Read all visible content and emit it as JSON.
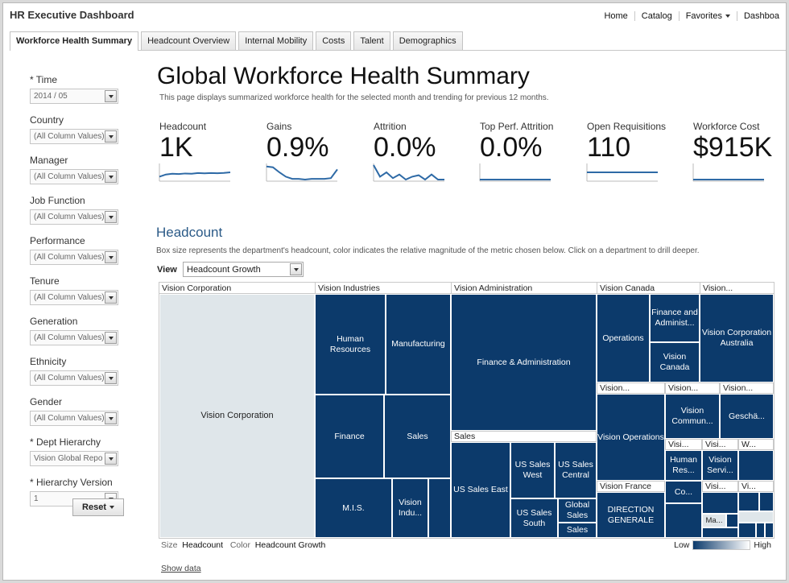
{
  "app": {
    "title": "HR Executive Dashboard"
  },
  "topnav": {
    "links": [
      "Home",
      "Catalog",
      "Favorites",
      "Dashboa"
    ]
  },
  "tabs": [
    "Workforce Health Summary",
    "Headcount Overview",
    "Internal Mobility",
    "Costs",
    "Talent",
    "Demographics"
  ],
  "prompts": [
    {
      "label": "* Time",
      "value": "2014 / 05"
    },
    {
      "label": "Country",
      "value": "(All Column Values)"
    },
    {
      "label": "Manager",
      "value": "(All Column Values)"
    },
    {
      "label": "Job Function",
      "value": "(All Column Values)"
    },
    {
      "label": "Performance",
      "value": "(All Column Values)"
    },
    {
      "label": "Tenure",
      "value": "(All Column Values)"
    },
    {
      "label": "Generation",
      "value": "(All Column Values)"
    },
    {
      "label": "Ethnicity",
      "value": "(All Column Values)"
    },
    {
      "label": "Gender",
      "value": "(All Column Values)"
    },
    {
      "label": "* Dept Hierarchy",
      "value": "Vision Global Repo"
    },
    {
      "label": "* Hierarchy Version",
      "value": "1"
    }
  ],
  "reset_label": "Reset",
  "page": {
    "title": "Global Workforce Health Summary",
    "description": "This page displays summarized workforce health for the selected month and trending for previous 12 months."
  },
  "kpis": [
    {
      "label": "Headcount",
      "value": "1K",
      "trend": [
        0.2,
        0.35,
        0.4,
        0.38,
        0.42,
        0.4,
        0.45,
        0.43,
        0.45,
        0.44,
        0.46,
        0.5
      ]
    },
    {
      "label": "Gains",
      "value": "0.9%",
      "trend": [
        0.9,
        0.85,
        0.5,
        0.2,
        0.05,
        0.05,
        0.0,
        0.05,
        0.05,
        0.05,
        0.1,
        0.7
      ]
    },
    {
      "label": "Attrition",
      "value": "0.0%",
      "trend": [
        1.0,
        0.2,
        0.5,
        0.1,
        0.35,
        0.0,
        0.2,
        0.3,
        0.0,
        0.35,
        0.0,
        0.0
      ]
    },
    {
      "label": "Top Perf. Attrition",
      "value": "0.0%",
      "trend": [
        0,
        0,
        0,
        0,
        0,
        0,
        0,
        0,
        0,
        0,
        0,
        0
      ]
    },
    {
      "label": "Open Requisitions",
      "value": "110",
      "trend": [
        0.5,
        0.5,
        0.5,
        0.5,
        0.5,
        0.5,
        0.5,
        0.5,
        0.5,
        0.5,
        0.5,
        0.5
      ]
    },
    {
      "label": "Workforce Cost",
      "value": "$915K",
      "trend": [
        0,
        0,
        0,
        0,
        0,
        0,
        0,
        0,
        0,
        0,
        0,
        0
      ]
    }
  ],
  "headcount": {
    "title": "Headcount",
    "description": "Box size represents the department's headcount, color indicates the relative magnitude of the metric chosen below. Click on a department to drill deeper.",
    "view_label": "View",
    "view_value": "Headcount Growth",
    "groups": [
      "Vision Corporation",
      "Vision Industries",
      "Vision Administration",
      "Vision Canada",
      "Vision..."
    ],
    "tiles": {
      "vision_corporation": "Vision Corporation",
      "human_resources": "Human Resources",
      "manufacturing": "Manufacturing",
      "finance": "Finance",
      "sales": "Sales",
      "mis": "M.I.S.",
      "vision_indu": "Vision Indu...",
      "finance_admin": "Finance & Administration",
      "sales_header": "Sales",
      "us_sales_east": "US Sales East",
      "us_sales_west": "US Sales West",
      "us_sales_central": "US Sales Central",
      "us_sales_south": "US Sales South",
      "global_sales": "Global Sales",
      "sales_small": "Sales",
      "operations": "Operations",
      "finance_administ": "Finance and Administ...",
      "vision_canada": "Vision Canada",
      "vision_corp_australia": "Vision Corporation Australia",
      "sub_vision_1": "Vision...",
      "sub_vision_2": "Vision...",
      "sub_vision_3": "Vision...",
      "vision_operations": "Vision Operations",
      "vision_commun": "Vision Commun...",
      "gescha": "Geschä...",
      "visi_1": "Visi...",
      "visi_2": "Visi...",
      "w_dots": "W...",
      "human_res": "Human Res...",
      "vision_servi": "Vision Servi...",
      "vision_france": "Vision France",
      "co_dots": "Co...",
      "direction_generale": "DIRECTION GENERALE",
      "visi_3": "Visi...",
      "vi_dots": "Vi...",
      "ma_dots": "Ma..."
    },
    "footer": {
      "size_label": "Size",
      "size_value": "Headcount",
      "color_label": "Color",
      "color_value": "Headcount Growth"
    },
    "legend": {
      "low": "Low",
      "high": "High"
    },
    "show_data": "Show data"
  },
  "colors": {
    "tile": "#0c3a6b",
    "tile_light": "#dfe6ea",
    "accent": "#2b5a87",
    "spark": "#2e6aa6"
  }
}
